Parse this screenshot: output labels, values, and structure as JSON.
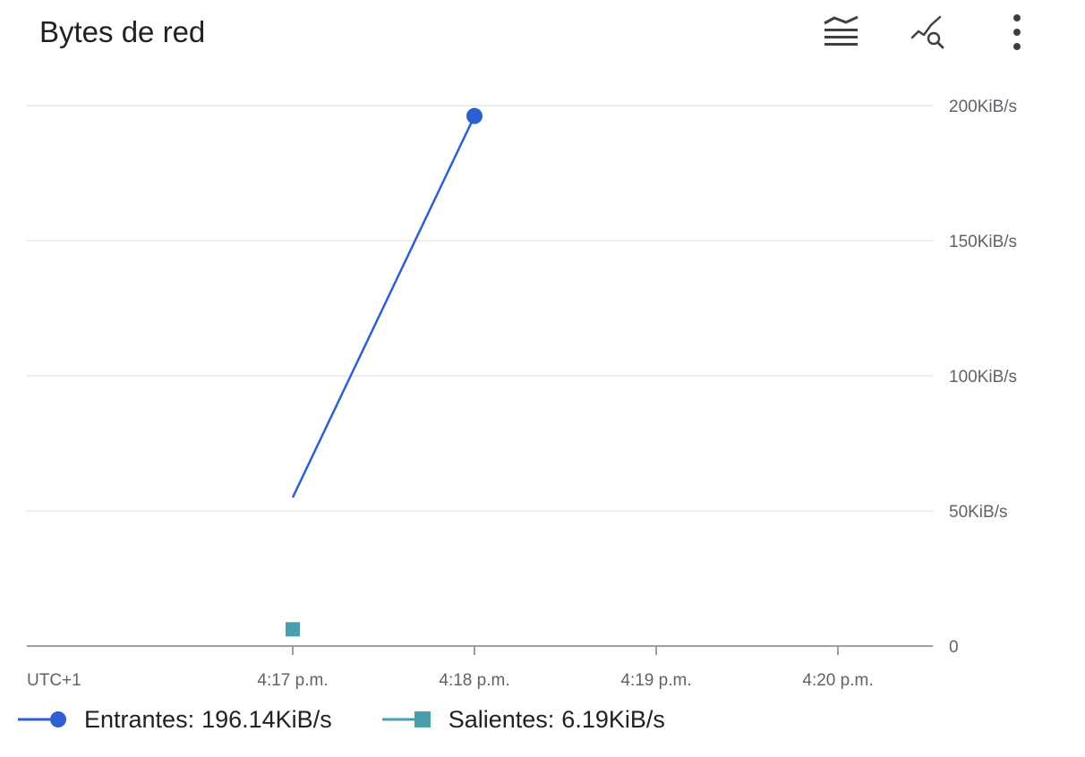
{
  "card": {
    "title": "Bytes de red",
    "toolbar": [
      {
        "icon": "legend-toggle-icon"
      },
      {
        "icon": "explore-chart-icon"
      },
      {
        "icon": "more-vert-icon"
      }
    ]
  },
  "colors": {
    "entrantes": "#2d5fd3",
    "salientes": "#4a9fac",
    "grid": "#eeeeee",
    "axis": "#5f6368"
  },
  "chart_data": {
    "type": "line",
    "title": "Bytes de red",
    "xlabel": "",
    "ylabel": "",
    "timezone_label": "UTC+1",
    "x_ticks": [
      "4:17 p.m.",
      "4:18 p.m.",
      "4:19 p.m.",
      "4:20 p.m."
    ],
    "xlim": [
      "4:15:32 p.m.",
      "4:20:30 p.m."
    ],
    "y_ticks": [
      {
        "value": 0,
        "label": "0"
      },
      {
        "value": 50,
        "label": "50KiB/s"
      },
      {
        "value": 100,
        "label": "100KiB/s"
      },
      {
        "value": 150,
        "label": "150KiB/s"
      },
      {
        "value": 200,
        "label": "200KiB/s"
      }
    ],
    "y_unit": "KiB/s",
    "ylim": [
      0,
      200
    ],
    "grid": true,
    "legend_position": "bottom",
    "series": [
      {
        "name": "Entrantes",
        "marker": "circle",
        "points": [
          {
            "x": "4:17 p.m.",
            "y": 55
          },
          {
            "x": "4:18 p.m.",
            "y": 196.14
          }
        ]
      },
      {
        "name": "Salientes",
        "marker": "square",
        "points": [
          {
            "x": "4:17 p.m.",
            "y": 6.19
          }
        ]
      }
    ]
  },
  "legend": [
    {
      "name": "Entrantes",
      "value": "196.14KiB/s"
    },
    {
      "name": "Salientes",
      "value": "6.19KiB/s"
    }
  ]
}
